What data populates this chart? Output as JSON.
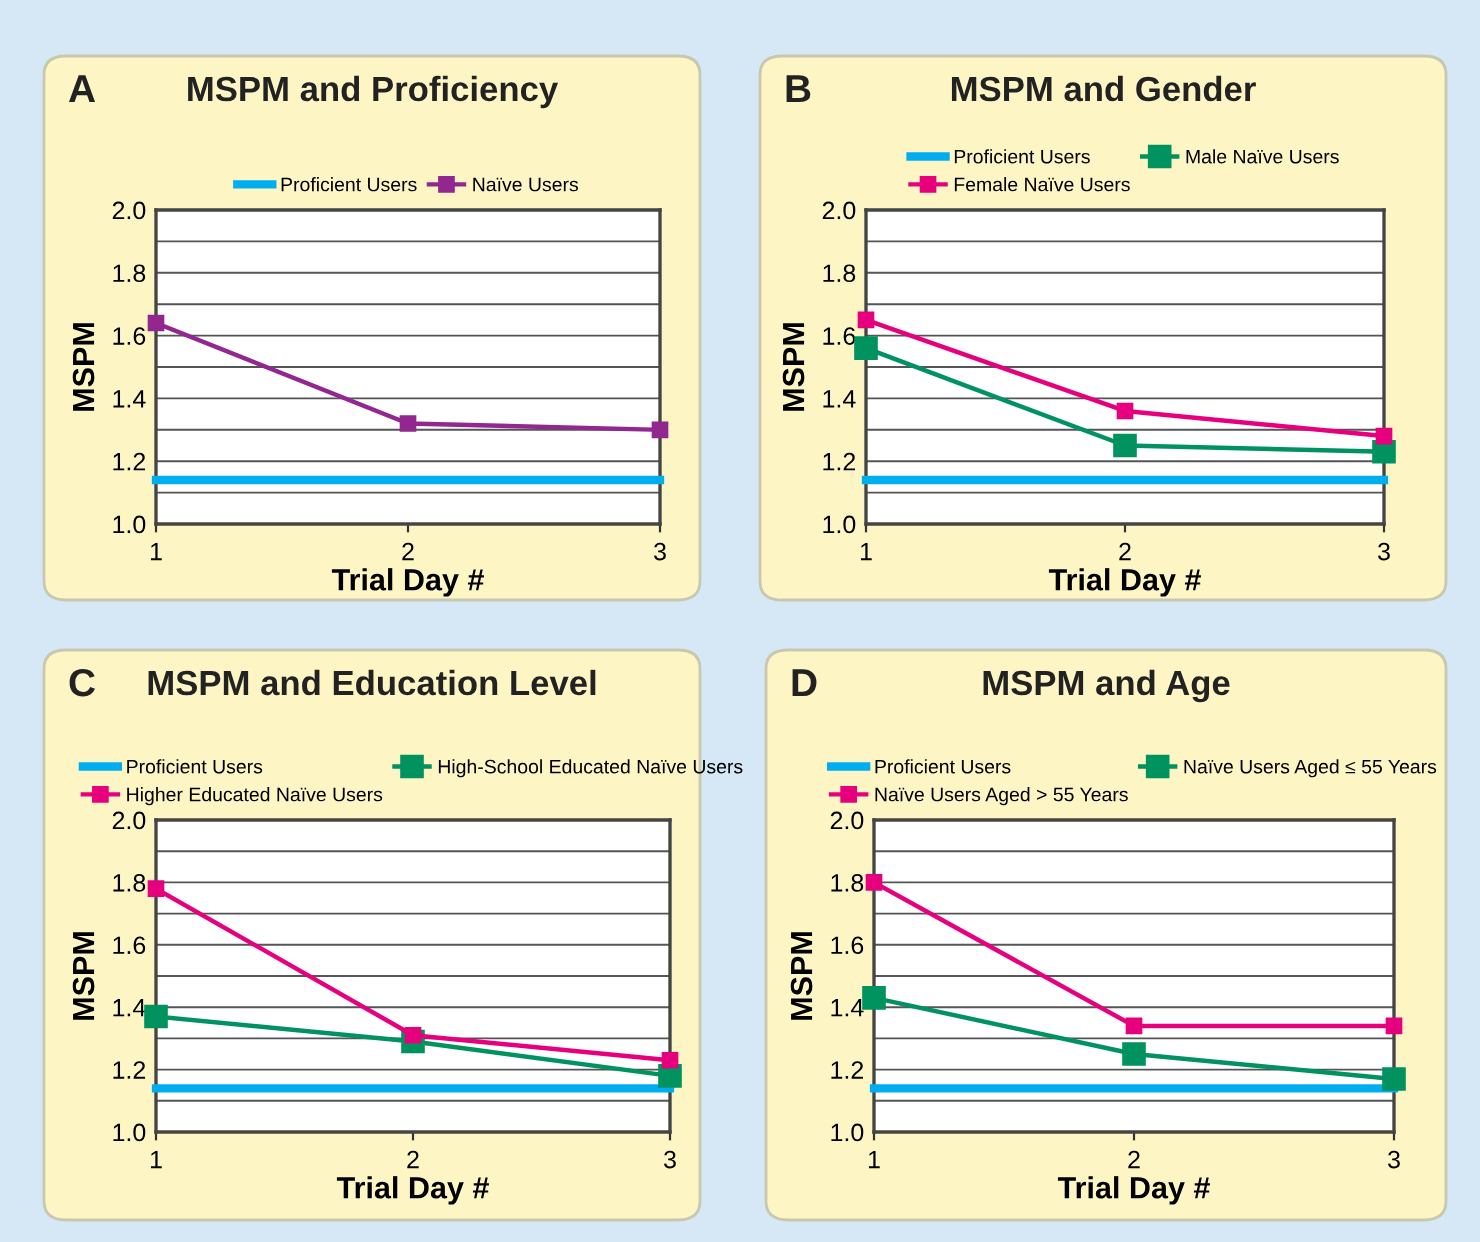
{
  "chart_data": [
    {
      "type": "line",
      "title": "MSPM and Proficiency",
      "annotations": [
        "A"
      ],
      "xlabel": "Trial Day #",
      "ylabel": "MSPM",
      "x": [
        1,
        2,
        3
      ],
      "xlim": [
        1,
        3
      ],
      "xticks": [
        1,
        2,
        3
      ],
      "ylim": [
        1.0,
        2.0
      ],
      "yticks": [
        {
          "value": 1.0,
          "label": "1.0"
        },
        {
          "value": 1.1,
          "label": null
        },
        1.2,
        {
          "value": 1.3,
          "label": null
        },
        1.4,
        {
          "value": 1.5,
          "label": null
        },
        1.6,
        {
          "value": 1.7,
          "label": null
        },
        1.8,
        {
          "value": 1.9,
          "label": null
        },
        {
          "value": 2.0,
          "label": "2.0"
        }
      ],
      "grid": "y",
      "legend": "top",
      "line_style": "solid",
      "series": [
        {
          "name": "Proficient Users",
          "color": "#00aeef",
          "values": [
            1.14,
            1.14,
            1.14
          ],
          "marker": "none"
        },
        {
          "name": "Naïve Users",
          "color": "#92278f",
          "values": [
            1.64,
            1.32,
            1.3
          ],
          "marker": "square"
        }
      ]
    },
    {
      "type": "line",
      "title": "MSPM and Gender",
      "annotations": [
        "B"
      ],
      "xlabel": "Trial Day #",
      "ylabel": "MSPM",
      "x": [
        1,
        2,
        3
      ],
      "xlim": [
        1,
        3
      ],
      "xticks": [
        1,
        2,
        3
      ],
      "ylim": [
        1.0,
        2.0
      ],
      "yticks": [
        {
          "value": 1.0,
          "label": "1.0"
        },
        {
          "value": 1.1,
          "label": null
        },
        1.2,
        {
          "value": 1.3,
          "label": null
        },
        1.4,
        {
          "value": 1.5,
          "label": null
        },
        1.6,
        {
          "value": 1.7,
          "label": null
        },
        1.8,
        {
          "value": 1.9,
          "label": null
        },
        {
          "value": 2.0,
          "label": "2.0"
        }
      ],
      "grid": "y",
      "legend": "top",
      "line_style": "solid",
      "series": [
        {
          "name": "Proficient Users",
          "color": "#00aeef",
          "values": [
            1.14,
            1.14,
            1.14
          ],
          "marker": "none"
        },
        {
          "name": "Male Naïve Users",
          "color": "#00925f",
          "values": [
            1.56,
            1.25,
            1.23
          ],
          "marker": "square"
        },
        {
          "name": "Female Naïve Users",
          "color": "#e6007e",
          "values": [
            1.65,
            1.36,
            1.28
          ],
          "marker": "square"
        }
      ]
    },
    {
      "type": "line",
      "title": "MSPM and Education Level",
      "annotations": [
        "C"
      ],
      "xlabel": "Trial Day #",
      "ylabel": "MSPM",
      "x": [
        1,
        2,
        3
      ],
      "xlim": [
        1,
        3
      ],
      "xticks": [
        1,
        2,
        3
      ],
      "ylim": [
        1.0,
        2.0
      ],
      "yticks": [
        {
          "value": 1.0,
          "label": "1.0"
        },
        {
          "value": 1.1,
          "label": null
        },
        1.2,
        {
          "value": 1.3,
          "label": null
        },
        1.4,
        {
          "value": 1.5,
          "label": null
        },
        1.6,
        {
          "value": 1.7,
          "label": null
        },
        1.8,
        {
          "value": 1.9,
          "label": null
        },
        {
          "value": 2.0,
          "label": "2.0"
        }
      ],
      "grid": "y",
      "legend": "top",
      "line_style": "solid",
      "series": [
        {
          "name": "Proficient Users",
          "color": "#00aeef",
          "values": [
            1.14,
            1.14,
            1.14
          ],
          "marker": "none"
        },
        {
          "name": "High-School Educated Naïve Users",
          "color": "#00925f",
          "values": [
            1.37,
            1.29,
            1.18
          ],
          "marker": "square"
        },
        {
          "name": "Higher Educated Naïve Users",
          "color": "#e6007e",
          "values": [
            1.78,
            1.31,
            1.23
          ],
          "marker": "square"
        }
      ]
    },
    {
      "type": "line",
      "title": "MSPM and Age",
      "annotations": [
        "D"
      ],
      "xlabel": "Trial Day #",
      "ylabel": "MSPM",
      "x": [
        1,
        2,
        3
      ],
      "xlim": [
        1,
        3
      ],
      "xticks": [
        1,
        2,
        3
      ],
      "ylim": [
        1.0,
        2.0
      ],
      "yticks": [
        {
          "value": 1.0,
          "label": "1.0"
        },
        {
          "value": 1.1,
          "label": null
        },
        1.2,
        {
          "value": 1.3,
          "label": null
        },
        1.4,
        {
          "value": 1.5,
          "label": null
        },
        1.6,
        {
          "value": 1.7,
          "label": null
        },
        1.8,
        {
          "value": 1.9,
          "label": null
        },
        {
          "value": 2.0,
          "label": "2.0"
        }
      ],
      "grid": "y",
      "legend": "top",
      "line_style": "solid",
      "series": [
        {
          "name": "Proficient Users",
          "color": "#00aeef",
          "values": [
            1.14,
            1.14,
            1.14
          ],
          "marker": "none"
        },
        {
          "name": "Naïve Users Aged ≤ 55 Years",
          "color": "#00925f",
          "values": [
            1.43,
            1.25,
            1.17
          ],
          "marker": "square"
        },
        {
          "name": "Naïve Users Aged > 55 Years",
          "color": "#e6007e",
          "values": [
            1.8,
            1.34,
            1.34
          ],
          "marker": "square"
        }
      ]
    }
  ]
}
